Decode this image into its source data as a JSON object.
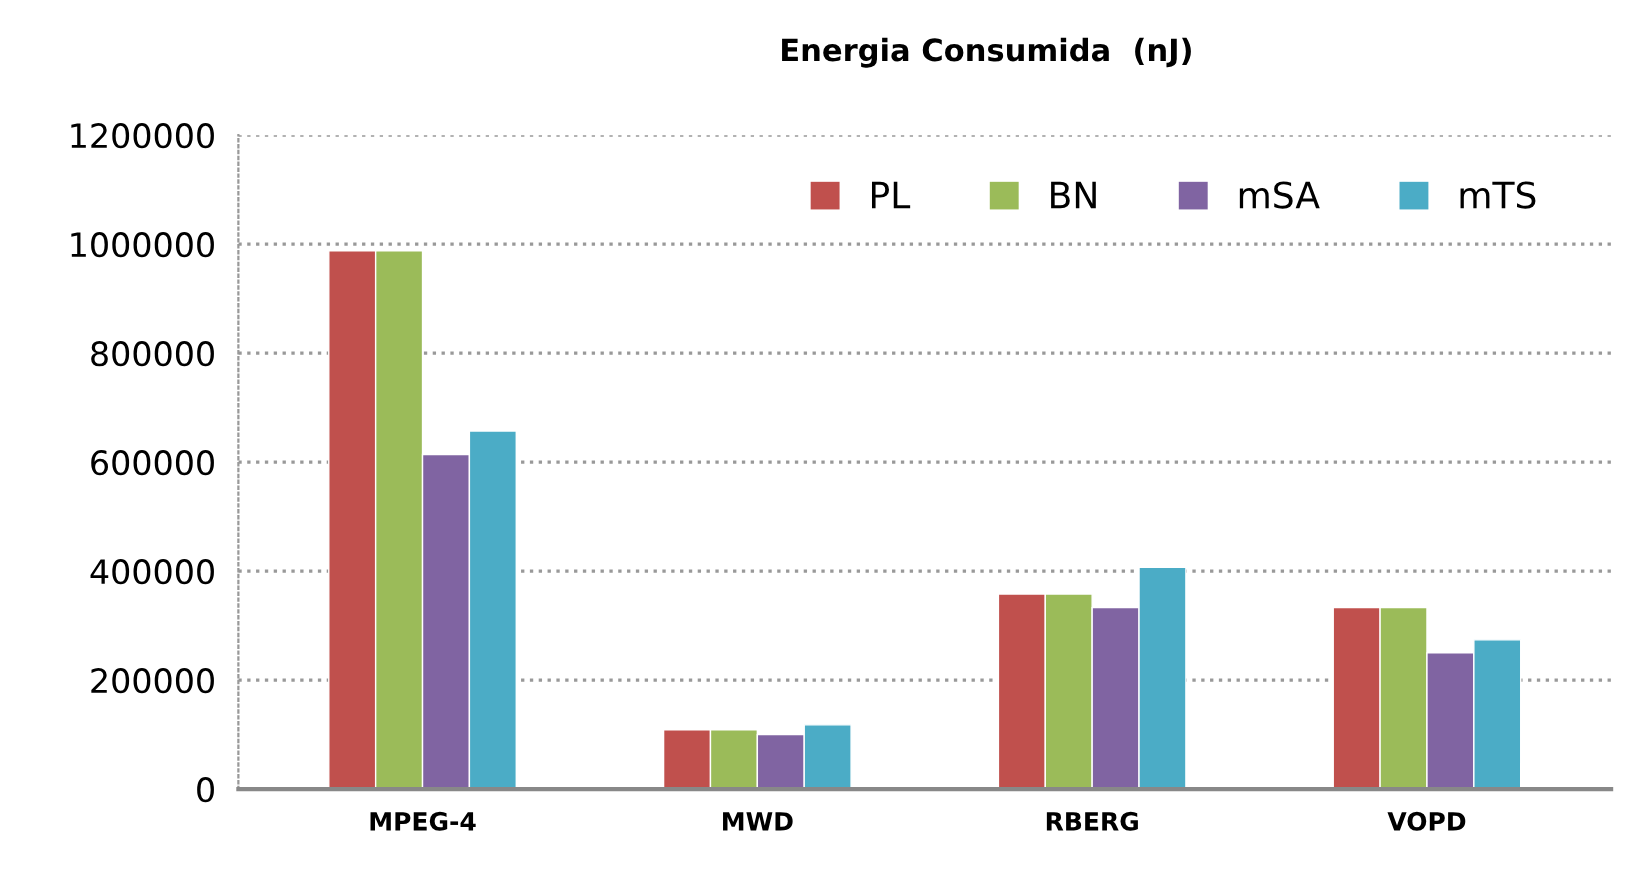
{
  "chart_data": {
    "type": "bar",
    "title": "Energia Consumida  (nJ)",
    "categories": [
      "MPEG-4",
      "MWD",
      "RBERG",
      "VOPD"
    ],
    "series": [
      {
        "name": "PL",
        "color": "#c0504d",
        "values": [
          988000,
          109000,
          358000,
          333000
        ]
      },
      {
        "name": "BN",
        "color": "#9bbb59",
        "values": [
          988000,
          109000,
          358000,
          333000
        ]
      },
      {
        "name": "mSA",
        "color": "#8064a2",
        "values": [
          614000,
          100000,
          333000,
          250000
        ]
      },
      {
        "name": "mTS",
        "color": "#4bacc6",
        "values": [
          657000,
          118000,
          407000,
          274000
        ]
      }
    ],
    "ylim": [
      0,
      1200000
    ],
    "yticks": [
      0,
      200000,
      400000,
      600000,
      800000,
      1000000,
      1200000
    ],
    "grid": "y",
    "legend": "top right"
  }
}
